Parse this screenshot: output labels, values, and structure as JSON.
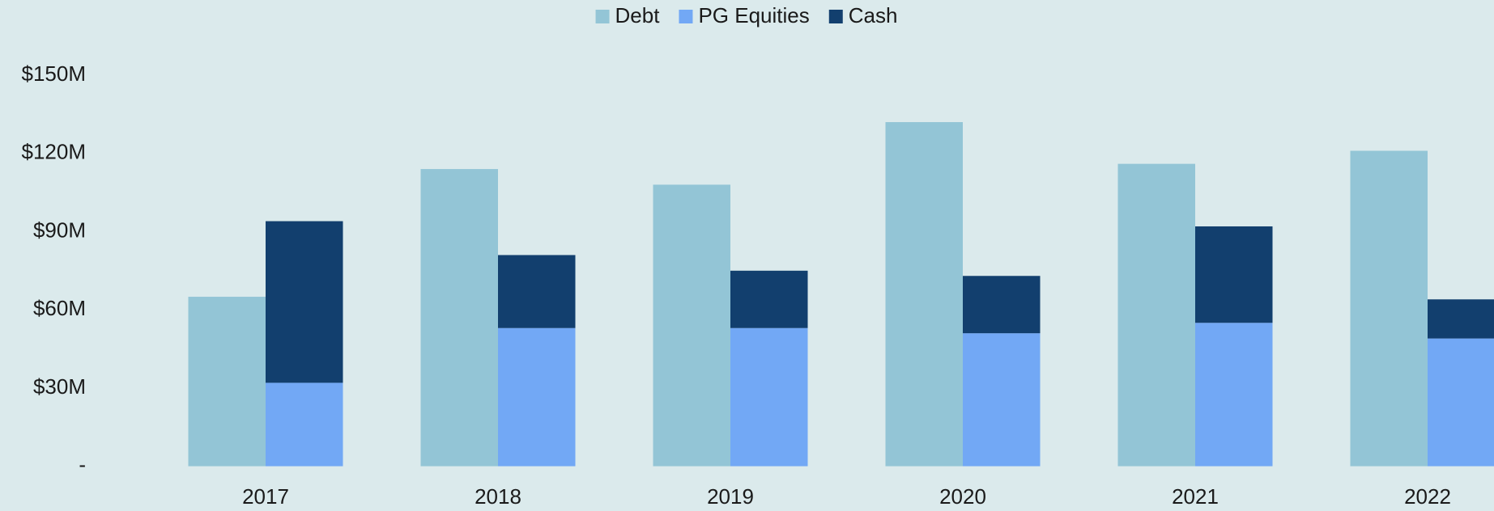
{
  "chart_data": {
    "type": "bar",
    "stacked_groups": [
      [
        "Debt"
      ],
      [
        "PG Equities",
        "Cash"
      ]
    ],
    "categories": [
      "2017",
      "2018",
      "2019",
      "2020",
      "2021",
      "2022"
    ],
    "series": [
      {
        "name": "Debt",
        "color": "#93c5d6",
        "values": [
          65,
          114,
          108,
          132,
          116,
          121
        ]
      },
      {
        "name": "PG Equities",
        "color": "#72a8f5",
        "values": [
          32,
          53,
          53,
          51,
          55,
          49
        ]
      },
      {
        "name": "Cash",
        "color": "#123f6e",
        "values": [
          62,
          28,
          22,
          22,
          37,
          15
        ]
      }
    ],
    "ylim": [
      0,
      150
    ],
    "yticks": [
      {
        "value": 0,
        "label": "-"
      },
      {
        "value": 30,
        "label": "$30M"
      },
      {
        "value": 60,
        "label": "$60M"
      },
      {
        "value": 90,
        "label": "$90M"
      },
      {
        "value": 120,
        "label": "$120M"
      },
      {
        "value": 150,
        "label": "$150M"
      }
    ],
    "legend": "top",
    "grid": false
  }
}
